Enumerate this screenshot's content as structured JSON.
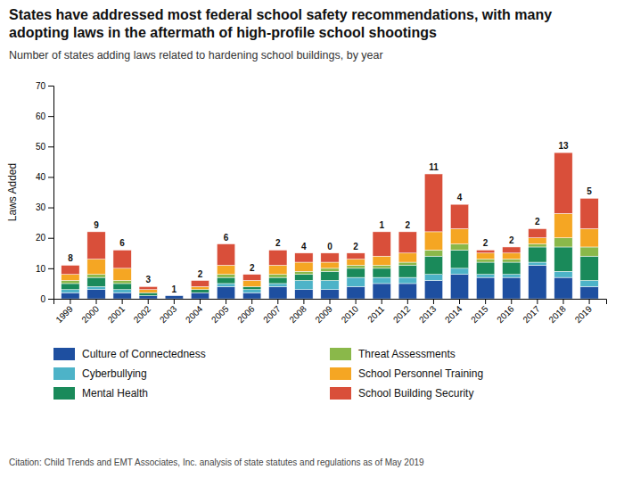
{
  "chart_data": {
    "type": "bar",
    "stacked": true,
    "title": "States have addressed most federal school safety recommendations, with many adopting laws in the aftermath of high-profile school shootings",
    "subtitle": "Number of states adding laws related to hardening school buildings, by year",
    "ylabel": "Laws Added",
    "citation": "Citation: Child Trends and EMT Associates, Inc. analysis of state statutes and regulations as of May 2019",
    "categories": [
      "1999",
      "2000",
      "2001",
      "2002",
      "2003",
      "2004",
      "2005",
      "2006",
      "2007",
      "2008",
      "2009",
      "2010",
      "2011",
      "2012",
      "2013",
      "2014",
      "2015",
      "2016",
      "2017",
      "2018",
      "2019"
    ],
    "series": [
      {
        "name": "Culture of Connectedness",
        "color": "#1e4fa0",
        "values": [
          2,
          3,
          2,
          1,
          1,
          2,
          4,
          2,
          4,
          3,
          3,
          4,
          5,
          5,
          6,
          8,
          7,
          7,
          11,
          7,
          4
        ]
      },
      {
        "name": "Cyberbullying",
        "color": "#4db3c8",
        "values": [
          1,
          1,
          1,
          0,
          0,
          0,
          1,
          1,
          1,
          3,
          3,
          3,
          2,
          2,
          2,
          2,
          1,
          1,
          1,
          2,
          2
        ]
      },
      {
        "name": "Mental Health",
        "color": "#1a8a5a",
        "values": [
          2,
          3,
          2,
          1,
          0,
          1,
          2,
          1,
          2,
          2,
          3,
          3,
          3,
          4,
          6,
          6,
          4,
          4,
          5,
          8,
          8
        ]
      },
      {
        "name": "Threat Assessments",
        "color": "#8ab84a",
        "values": [
          1,
          1,
          1,
          0,
          0,
          0,
          1,
          0,
          1,
          1,
          1,
          1,
          1,
          1,
          2,
          2,
          1,
          1,
          1,
          3,
          3
        ]
      },
      {
        "name": "School Personnel Training",
        "color": "#f5a623",
        "values": [
          2,
          5,
          4,
          1,
          0,
          1,
          3,
          2,
          3,
          3,
          2,
          2,
          3,
          3,
          6,
          5,
          2,
          2,
          2,
          8,
          6
        ]
      },
      {
        "name": "School Building Security",
        "color": "#d94f3a",
        "values": [
          3,
          9,
          6,
          1,
          0,
          2,
          7,
          2,
          5,
          3,
          3,
          2,
          8,
          7,
          19,
          8,
          1,
          2,
          3,
          20,
          10
        ]
      }
    ],
    "top_labels": [
      8,
      9,
      6,
      3,
      1,
      2,
      6,
      2,
      2,
      4,
      0,
      2,
      1,
      2,
      11,
      4,
      2,
      2,
      2,
      13,
      5
    ],
    "ylim": [
      0,
      70
    ],
    "yticks": [
      0,
      10,
      20,
      30,
      40,
      50,
      60,
      70
    ],
    "grid": false,
    "legend": "bottom"
  }
}
